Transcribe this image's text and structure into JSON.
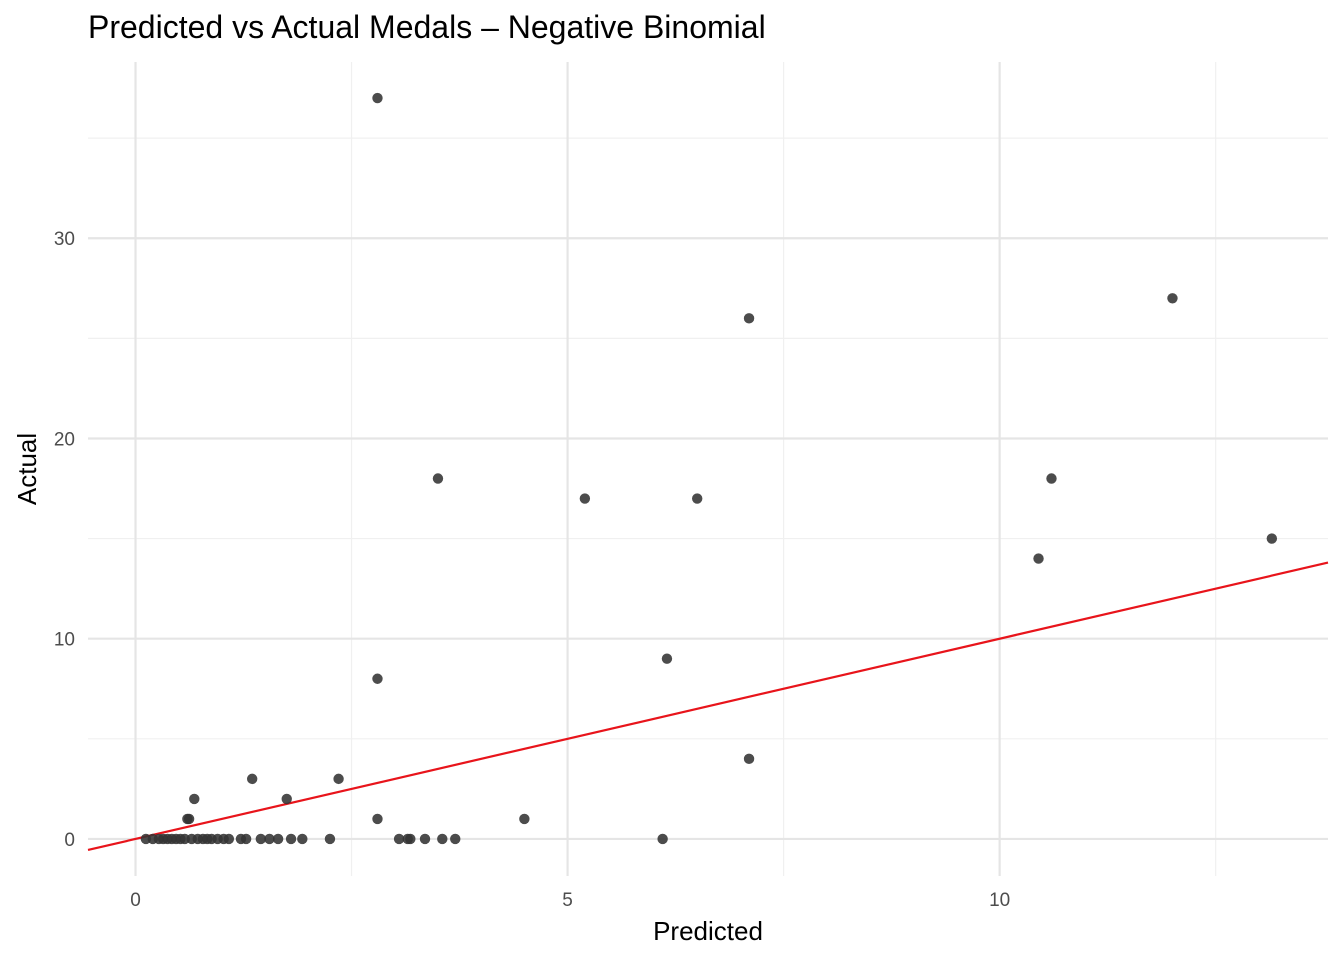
{
  "chart_data": {
    "type": "scatter",
    "title": "Predicted vs Actual Medals – Negative Binomial",
    "xlabel": "Predicted",
    "ylabel": "Actual",
    "xlim": [
      -0.55,
      13.8
    ],
    "ylim": [
      -1.85,
      38.8
    ],
    "x_ticks": [
      0,
      5,
      10
    ],
    "y_ticks": [
      0,
      10,
      20,
      30
    ],
    "grid": true,
    "point_color": "#333333",
    "line_color": "#e8141b",
    "reference_line": {
      "slope": 1,
      "intercept": 0
    },
    "points": [
      {
        "x": 2.8,
        "y": 37
      },
      {
        "x": 12.0,
        "y": 27
      },
      {
        "x": 7.1,
        "y": 26
      },
      {
        "x": 3.5,
        "y": 18
      },
      {
        "x": 10.6,
        "y": 18
      },
      {
        "x": 5.2,
        "y": 17
      },
      {
        "x": 6.5,
        "y": 17
      },
      {
        "x": 13.15,
        "y": 15
      },
      {
        "x": 10.45,
        "y": 14
      },
      {
        "x": 6.15,
        "y": 9
      },
      {
        "x": 2.8,
        "y": 8
      },
      {
        "x": 7.1,
        "y": 4
      },
      {
        "x": 1.35,
        "y": 3
      },
      {
        "x": 2.35,
        "y": 3
      },
      {
        "x": 0.68,
        "y": 2
      },
      {
        "x": 1.75,
        "y": 2
      },
      {
        "x": 0.6,
        "y": 1
      },
      {
        "x": 0.62,
        "y": 1
      },
      {
        "x": 2.8,
        "y": 1
      },
      {
        "x": 4.5,
        "y": 1
      },
      {
        "x": 6.1,
        "y": 0
      },
      {
        "x": 0.12,
        "y": 0
      },
      {
        "x": 0.2,
        "y": 0
      },
      {
        "x": 0.27,
        "y": 0
      },
      {
        "x": 0.32,
        "y": 0
      },
      {
        "x": 0.37,
        "y": 0
      },
      {
        "x": 0.42,
        "y": 0
      },
      {
        "x": 0.47,
        "y": 0
      },
      {
        "x": 0.52,
        "y": 0
      },
      {
        "x": 0.57,
        "y": 0
      },
      {
        "x": 0.65,
        "y": 0
      },
      {
        "x": 0.72,
        "y": 0
      },
      {
        "x": 0.78,
        "y": 0
      },
      {
        "x": 0.83,
        "y": 0
      },
      {
        "x": 0.88,
        "y": 0
      },
      {
        "x": 0.95,
        "y": 0
      },
      {
        "x": 1.02,
        "y": 0
      },
      {
        "x": 1.08,
        "y": 0
      },
      {
        "x": 1.22,
        "y": 0
      },
      {
        "x": 1.28,
        "y": 0
      },
      {
        "x": 1.45,
        "y": 0
      },
      {
        "x": 1.55,
        "y": 0
      },
      {
        "x": 1.65,
        "y": 0
      },
      {
        "x": 1.8,
        "y": 0
      },
      {
        "x": 1.93,
        "y": 0
      },
      {
        "x": 2.25,
        "y": 0
      },
      {
        "x": 3.05,
        "y": 0
      },
      {
        "x": 3.15,
        "y": 0
      },
      {
        "x": 3.18,
        "y": 0
      },
      {
        "x": 3.35,
        "y": 0
      },
      {
        "x": 3.55,
        "y": 0
      },
      {
        "x": 3.7,
        "y": 0
      }
    ]
  }
}
